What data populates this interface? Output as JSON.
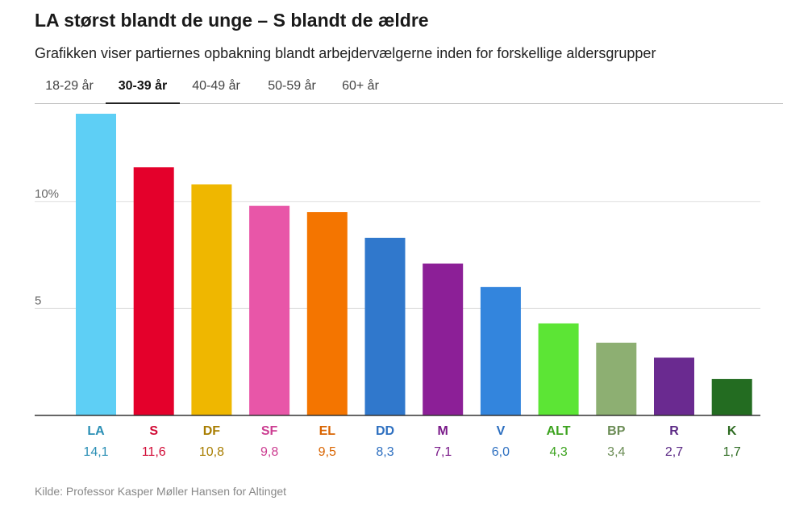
{
  "title": "LA størst blandt de unge – S blandt de ældre",
  "subtitle": "Grafikken viser partiernes opbakning blandt arbejdervælgerne inden for forskellige aldersgrupper",
  "tabs": [
    {
      "label": "18-29 år",
      "active": false
    },
    {
      "label": "30-39 år",
      "active": true
    },
    {
      "label": "40-49 år",
      "active": false
    },
    {
      "label": "50-59 år",
      "active": false
    },
    {
      "label": "60+ år",
      "active": false
    }
  ],
  "source": "Kilde: Professor Kasper Møller Hansen for Altinget",
  "chart_data": {
    "type": "bar",
    "categories": [
      "LA",
      "S",
      "DF",
      "SF",
      "EL",
      "DD",
      "M",
      "V",
      "ALT",
      "BP",
      "R",
      "K"
    ],
    "values": [
      14.1,
      11.6,
      10.8,
      9.8,
      9.5,
      8.3,
      7.1,
      6.0,
      4.3,
      3.4,
      2.7,
      1.7
    ],
    "value_labels": [
      "14,1",
      "11,6",
      "10,8",
      "9,8",
      "9,5",
      "8,3",
      "7,1",
      "6,0",
      "4,3",
      "3,4",
      "2,7",
      "1,7"
    ],
    "colors": [
      "#5ecff5",
      "#e4002b",
      "#efb700",
      "#e856a8",
      "#f47500",
      "#3078cc",
      "#8c1f97",
      "#3385dd",
      "#5ce535",
      "#8daf72",
      "#6a2a90",
      "#236c21"
    ],
    "label_colors": [
      "#2a8fb5",
      "#d10a35",
      "#a87d00",
      "#cc3d91",
      "#d96400",
      "#2d6fc0",
      "#7a1a89",
      "#2d6fc0",
      "#3ca31f",
      "#6b8c55",
      "#5c2a85",
      "#2e6b22"
    ],
    "yticks": [
      5,
      10
    ],
    "ytick_labels": [
      "5",
      "10%"
    ],
    "ylim": [
      0,
      14.1
    ],
    "grid": true,
    "xlabel": "",
    "ylabel": ""
  }
}
